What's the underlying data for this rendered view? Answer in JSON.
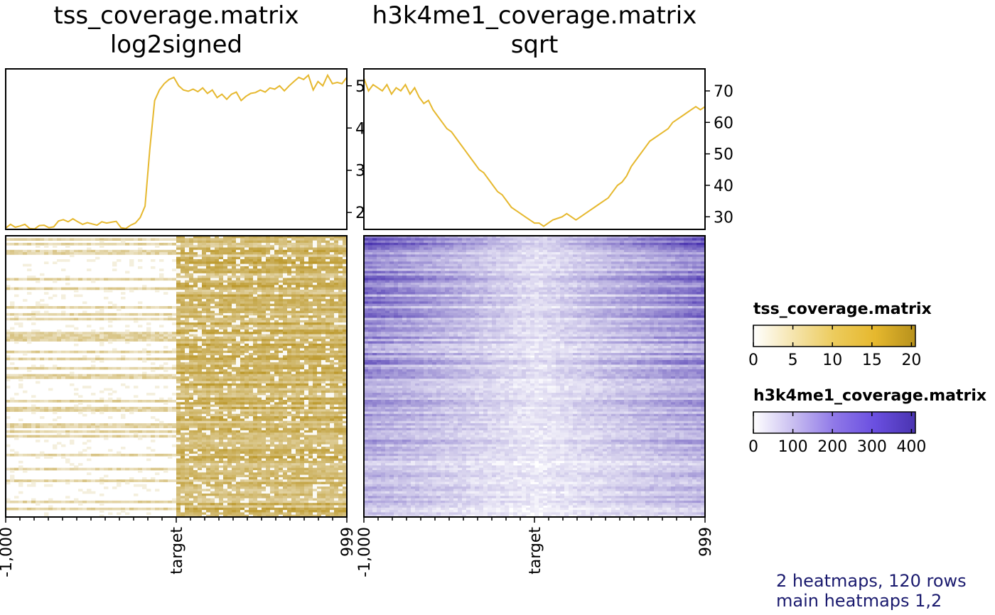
{
  "chart_data": [
    {
      "type": "heatmap",
      "name": "tss_coverage.matrix",
      "title": "tss_coverage.matrix",
      "subtitle": "log2signed",
      "rows": 120,
      "x_tick_labels": [
        "-1,000",
        "target",
        "999"
      ],
      "colors": {
        "low": "#ffffff",
        "high": "#b7911c",
        "line": "#e6b82e"
      },
      "profile": {
        "type": "line",
        "y_ticks": [
          2,
          3,
          4,
          5
        ],
        "ylim": [
          1.6,
          5.4
        ],
        "values": [
          1.63,
          1.72,
          1.65,
          1.68,
          1.72,
          1.62,
          1.61,
          1.69,
          1.7,
          1.64,
          1.66,
          1.8,
          1.83,
          1.78,
          1.85,
          1.78,
          1.72,
          1.76,
          1.73,
          1.7,
          1.78,
          1.75,
          1.77,
          1.79,
          1.64,
          1.62,
          1.7,
          1.75,
          1.88,
          2.15,
          3.5,
          4.65,
          4.9,
          5.05,
          5.15,
          5.2,
          5.0,
          4.9,
          4.87,
          4.92,
          4.86,
          4.95,
          4.82,
          4.9,
          4.72,
          4.8,
          4.68,
          4.8,
          4.85,
          4.65,
          4.75,
          4.82,
          4.84,
          4.9,
          4.85,
          4.95,
          4.92,
          5.0,
          4.88,
          5.0,
          5.1,
          5.2,
          5.15,
          5.25,
          4.9,
          5.1,
          5.0,
          5.25,
          5.05,
          5.08,
          5.05,
          5.2
        ]
      }
    },
    {
      "type": "heatmap",
      "name": "h3k4me1_coverage.matrix",
      "title": "h3k4me1_coverage.matrix",
      "subtitle": "sqrt",
      "rows": 120,
      "x_tick_labels": [
        "-1,000",
        "target",
        "999"
      ],
      "colors": {
        "low": "#ffffff",
        "high": "#4a34b0",
        "line": "#e6b82e"
      },
      "profile": {
        "type": "line",
        "y_ticks": [
          30,
          40,
          50,
          60,
          70
        ],
        "ylim": [
          26,
          77
        ],
        "values": [
          74,
          70,
          72,
          71,
          70,
          72,
          69,
          71,
          70,
          72,
          69,
          71,
          68,
          66,
          67,
          64,
          62,
          60,
          58,
          57,
          55,
          53,
          51,
          49,
          47,
          45,
          44,
          42,
          40,
          38,
          37,
          35,
          33,
          32,
          31,
          30,
          29,
          28,
          28,
          27,
          28,
          29,
          29.5,
          30,
          31,
          30,
          29,
          30,
          31,
          32,
          33,
          34,
          35,
          36,
          38,
          40,
          41,
          43,
          46,
          48,
          50,
          52,
          54,
          55,
          56,
          57,
          58,
          60,
          61,
          62,
          63,
          64,
          65,
          64,
          65
        ]
      }
    }
  ],
  "legends": [
    {
      "title": "tss_coverage.matrix",
      "ticks": [
        "0",
        "5",
        "10",
        "15",
        "20"
      ],
      "max": 20.5,
      "colors": [
        "#ffffff",
        "#f5e4ac",
        "#eccb5c",
        "#e6b82e",
        "#b7911c"
      ]
    },
    {
      "title": "h3k4me1_coverage.matrix",
      "ticks": [
        "0",
        "100",
        "200",
        "300",
        "400"
      ],
      "max": 410,
      "colors": [
        "#ffffff",
        "#c8bdf0",
        "#8f78e8",
        "#6a4fe0",
        "#4a34b0"
      ]
    }
  ],
  "status": {
    "line1": "2 heatmaps, 120 rows",
    "line2": "main heatmaps 1,2"
  }
}
